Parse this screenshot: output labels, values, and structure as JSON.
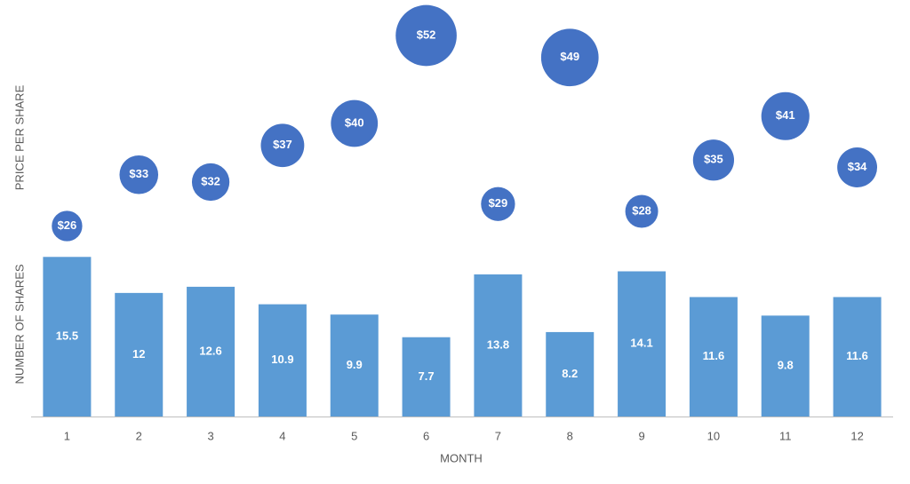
{
  "chart_data": {
    "type": "bar",
    "x_label": "MONTH",
    "y_label": "NUMBER OF SHARES",
    "y2_label": "PRICE PER SHARE",
    "categories": [
      1,
      2,
      3,
      4,
      5,
      6,
      7,
      8,
      9,
      10,
      11,
      12
    ],
    "ylim": [
      0,
      37
    ],
    "y2lim": [
      0,
      52
    ],
    "bars": {
      "color": "#5b9bd5",
      "values": [
        15.5,
        12,
        12.6,
        10.9,
        9.9,
        7.7,
        13.8,
        8.2,
        14.1,
        11.6,
        9.8,
        11.6
      ]
    },
    "bubbles": {
      "color": "#4472c4",
      "axis": "y2",
      "values": [
        26,
        33,
        32,
        37,
        40,
        52,
        29,
        49,
        28,
        35,
        41,
        34
      ],
      "value_labels": [
        "$26",
        "$33",
        "$32",
        "$37",
        "$40",
        "$52",
        "$29",
        "$49",
        "$28",
        "$35",
        "$41",
        "$34"
      ]
    }
  }
}
